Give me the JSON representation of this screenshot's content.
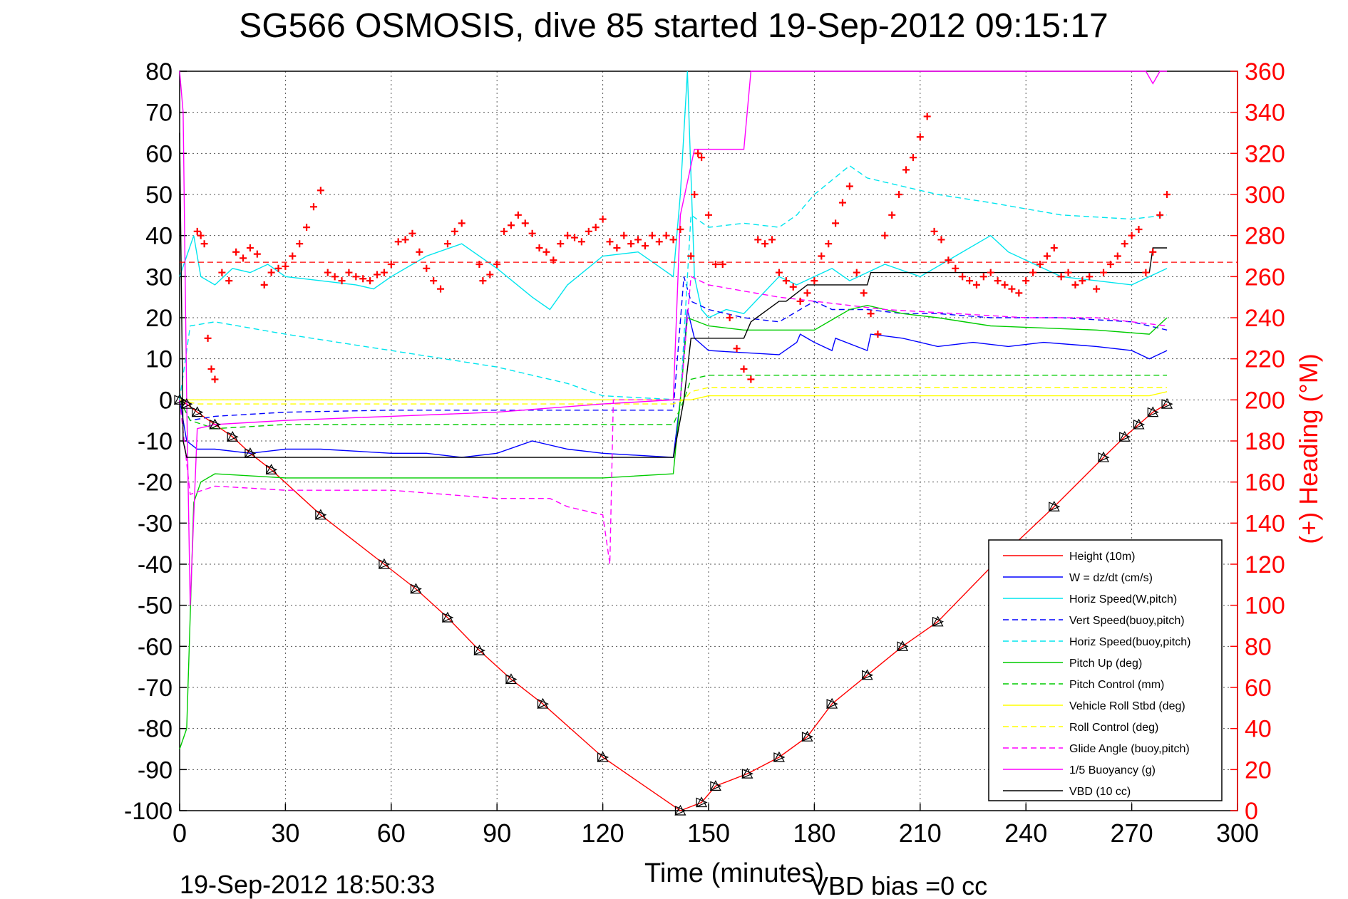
{
  "chart_data": {
    "type": "line",
    "title": "SG566 OSMOSIS, dive 85 started 19-Sep-2012 09:15:17",
    "xlabel": "Time (minutes)",
    "ylabel_right": "(+) Heading (°M)",
    "footer_left": "19-Sep-2012 18:50:33",
    "footer_right": "VBD bias =0 cc",
    "xlim": [
      0,
      300
    ],
    "ylim": [
      -100,
      80
    ],
    "ylim_right": [
      0,
      360
    ],
    "xticks": [
      "0",
      "30",
      "60",
      "90",
      "120",
      "150",
      "180",
      "210",
      "240",
      "270",
      "300"
    ],
    "yticks": [
      "80",
      "70",
      "60",
      "50",
      "40",
      "30",
      "20",
      "10",
      "0",
      "-10",
      "-20",
      "-30",
      "-40",
      "-50",
      "-60",
      "-70",
      "-80",
      "-90",
      "-100"
    ],
    "yticks_right": [
      "360",
      "340",
      "320",
      "300",
      "280",
      "260",
      "240",
      "220",
      "200",
      "180",
      "160",
      "140",
      "120",
      "100",
      "80",
      "60",
      "40",
      "20",
      "0"
    ],
    "grid": true,
    "legend_position": "bottom-right",
    "heading_mean": 267,
    "series": [
      {
        "name": "Height (10m)",
        "color": "#ff0000",
        "dash": "solid",
        "x": [
          0,
          2,
          5,
          10,
          15,
          20,
          26,
          40,
          58,
          67,
          76,
          85,
          94,
          103,
          120,
          142,
          148,
          152,
          161,
          170,
          178,
          185,
          195,
          205,
          215,
          232,
          248,
          262,
          268,
          272,
          276,
          280
        ],
        "y": [
          0,
          -1,
          -3,
          -6,
          -9,
          -13,
          -17,
          -28,
          -40,
          -46,
          -53,
          -61,
          -68,
          -74,
          -87,
          -100,
          -98,
          -94,
          -91,
          -87,
          -82,
          -74,
          -67,
          -60,
          -54,
          -39,
          -26,
          -14,
          -9,
          -6,
          -3,
          -1
        ]
      },
      {
        "name": "W = dz/dt (cm/s)",
        "color": "#0000ff",
        "dash": "solid",
        "x": [
          0,
          2,
          5,
          10,
          20,
          30,
          40,
          60,
          70,
          80,
          90,
          100,
          110,
          120,
          140,
          142,
          144,
          146,
          150,
          170,
          175,
          176,
          180,
          185,
          186,
          195,
          196,
          205,
          215,
          225,
          235,
          245,
          260,
          270,
          275,
          280
        ],
        "y": [
          0,
          -10,
          -12,
          -12,
          -13,
          -12,
          -12,
          -13,
          -13,
          -14,
          -13,
          -10,
          -12,
          -13,
          -14,
          0,
          22,
          15,
          12,
          11,
          14,
          16,
          14,
          12,
          15,
          12,
          16,
          15,
          13,
          14,
          13,
          14,
          13,
          12,
          10,
          12
        ]
      },
      {
        "name": "Horiz Speed(W,pitch)",
        "color": "#00e5ee",
        "dash": "solid",
        "x": [
          0,
          2,
          4,
          6,
          10,
          15,
          20,
          25,
          30,
          40,
          50,
          55,
          60,
          70,
          80,
          90,
          100,
          105,
          110,
          120,
          130,
          140,
          142,
          144,
          146,
          148,
          150,
          155,
          160,
          170,
          175,
          180,
          185,
          190,
          200,
          210,
          220,
          230,
          235,
          240,
          250,
          260,
          270,
          275,
          280
        ],
        "y": [
          30,
          35,
          40,
          30,
          28,
          32,
          31,
          33,
          30,
          29,
          28,
          27,
          30,
          35,
          38,
          32,
          25,
          22,
          28,
          35,
          36,
          30,
          50,
          80,
          30,
          22,
          20,
          22,
          21,
          30,
          28,
          30,
          32,
          29,
          33,
          30,
          35,
          40,
          36,
          34,
          30,
          29,
          28,
          30,
          32
        ]
      },
      {
        "name": "Vert Speed(buoy,pitch)",
        "color": "#0000ff",
        "dash": "dashed",
        "x": [
          0,
          3,
          10,
          30,
          60,
          90,
          120,
          140,
          143,
          145,
          150,
          160,
          170,
          180,
          185,
          195,
          205,
          215,
          230,
          250,
          270,
          280
        ],
        "y": [
          0,
          -5,
          -4,
          -3,
          -2.5,
          -2.5,
          -2.5,
          -2.5,
          30,
          24,
          22,
          20,
          19,
          24,
          22,
          22,
          21,
          21,
          20,
          20,
          19,
          17
        ]
      },
      {
        "name": "Horiz Speed(buoy,pitch)",
        "color": "#00e5ee",
        "dash": "dashed",
        "x": [
          0,
          3,
          10,
          30,
          60,
          90,
          110,
          120,
          142,
          145,
          150,
          160,
          170,
          175,
          180,
          190,
          195,
          205,
          215,
          230,
          250,
          270,
          280
        ],
        "y": [
          0,
          18,
          19,
          16,
          12,
          8,
          4,
          1,
          0,
          45,
          42,
          43,
          42,
          45,
          50,
          57,
          54,
          52,
          50,
          48,
          45,
          44,
          45
        ]
      },
      {
        "name": "Pitch Up (deg)",
        "color": "#00cc00",
        "dash": "solid",
        "x": [
          0,
          2,
          4,
          6,
          10,
          30,
          60,
          90,
          120,
          140,
          142,
          144,
          150,
          160,
          170,
          180,
          190,
          195,
          205,
          215,
          230,
          260,
          275,
          280
        ],
        "y": [
          -85,
          -80,
          -25,
          -20,
          -18,
          -19,
          -19,
          -19,
          -19,
          -18,
          0,
          20,
          18,
          17,
          17,
          17,
          22,
          23,
          21,
          20,
          18,
          17,
          16,
          20
        ]
      },
      {
        "name": "Pitch Control (mm)",
        "color": "#00cc00",
        "dash": "dashed",
        "x": [
          0,
          3,
          10,
          30,
          60,
          90,
          120,
          140,
          143,
          145,
          150,
          170,
          180,
          200,
          230,
          260,
          280
        ],
        "y": [
          0,
          -5,
          -7,
          -6,
          -6,
          -6,
          -6,
          -6,
          0,
          5,
          6,
          6,
          6,
          6,
          6,
          6,
          6
        ]
      },
      {
        "name": "Vehicle Roll Stbd (deg)",
        "color": "#ffff00",
        "dash": "solid",
        "x": [
          0,
          5,
          10,
          20,
          40,
          60,
          80,
          100,
          120,
          140,
          142,
          145,
          150,
          170,
          180,
          200,
          220,
          240,
          260,
          275,
          280
        ],
        "y": [
          0,
          0,
          0,
          0,
          0,
          0,
          0,
          0,
          0,
          0,
          0,
          0,
          1,
          1,
          1,
          1,
          1,
          1,
          1,
          1,
          2
        ]
      },
      {
        "name": "Roll Control (deg)",
        "color": "#ffff00",
        "dash": "dashed",
        "x": [
          0,
          5,
          10,
          30,
          60,
          90,
          120,
          140,
          143,
          145,
          150,
          170,
          200,
          230,
          260,
          280
        ],
        "y": [
          0,
          -1,
          -1,
          -1,
          -1,
          -1,
          -1,
          -1,
          0,
          2,
          3,
          3,
          3,
          3,
          3,
          3
        ]
      },
      {
        "name": "Glide Angle (buoy,pitch)",
        "color": "#ff00ff",
        "dash": "dashed",
        "x": [
          0,
          3,
          10,
          30,
          60,
          90,
          105,
          110,
          120,
          122,
          123,
          142,
          145,
          150,
          170,
          180,
          200,
          220,
          240,
          260,
          280
        ],
        "y": [
          0,
          -23,
          -21,
          -22,
          -22,
          -24,
          -24,
          -26,
          -28,
          -40,
          0,
          0,
          30,
          28,
          25,
          24,
          22,
          21,
          20,
          20,
          18
        ]
      },
      {
        "name": "1/5 Buoyancy (g)",
        "color": "#ff00ff",
        "dash": "solid",
        "x": [
          0,
          1,
          2,
          3,
          5,
          10,
          30,
          60,
          90,
          120,
          140,
          142,
          146,
          150,
          160,
          162,
          164,
          170,
          174,
          176,
          178,
          180,
          270,
          271,
          272,
          274,
          276,
          278,
          280
        ],
        "y": [
          80,
          70,
          0,
          -50,
          -7,
          -6,
          -5,
          -4,
          -3,
          -1,
          0,
          45,
          61,
          61,
          61,
          80,
          80,
          80,
          80,
          80,
          80,
          80,
          80,
          80,
          80,
          80,
          77,
          80,
          80
        ]
      },
      {
        "name": "VBD (10 cc)",
        "color": "#000000",
        "dash": "solid",
        "x": [
          0,
          1,
          2,
          3,
          15,
          60,
          100,
          140,
          143,
          145,
          150,
          160,
          162,
          170,
          172,
          178,
          180,
          195,
          196,
          265,
          275,
          276,
          280
        ],
        "y": [
          65,
          -10,
          -14,
          -14,
          -14,
          -14,
          -14,
          -14,
          0,
          15,
          15,
          15,
          19,
          24,
          24,
          28,
          28,
          28,
          31,
          31,
          31,
          37,
          37
        ]
      }
    ],
    "heading_points": {
      "name": "(+) Heading",
      "color": "#ff0000",
      "x": [
        5,
        6,
        7,
        8,
        9,
        10,
        12,
        14,
        16,
        18,
        20,
        22,
        24,
        26,
        28,
        30,
        32,
        34,
        36,
        38,
        40,
        42,
        44,
        46,
        48,
        50,
        52,
        54,
        56,
        58,
        60,
        62,
        64,
        66,
        68,
        70,
        72,
        74,
        76,
        78,
        80,
        85,
        86,
        88,
        90,
        92,
        94,
        96,
        98,
        100,
        102,
        104,
        106,
        108,
        110,
        112,
        114,
        116,
        118,
        120,
        122,
        124,
        126,
        128,
        130,
        132,
        134,
        136,
        138,
        140,
        142,
        145,
        146,
        147,
        148,
        150,
        152,
        154,
        156,
        158,
        160,
        162,
        164,
        166,
        168,
        170,
        172,
        174,
        176,
        178,
        180,
        182,
        184,
        186,
        188,
        190,
        192,
        194,
        196,
        198,
        200,
        202,
        204,
        206,
        208,
        210,
        212,
        214,
        216,
        218,
        220,
        222,
        224,
        226,
        228,
        230,
        232,
        234,
        236,
        238,
        240,
        242,
        244,
        246,
        248,
        250,
        252,
        254,
        256,
        258,
        260,
        262,
        264,
        266,
        268,
        270,
        272,
        274,
        276,
        278,
        280
      ],
      "y": [
        282,
        280,
        276,
        230,
        215,
        210,
        262,
        258,
        272,
        269,
        274,
        271,
        256,
        262,
        264,
        265,
        270,
        276,
        284,
        294,
        302,
        262,
        260,
        258,
        262,
        260,
        259,
        258,
        261,
        262,
        266,
        277,
        278,
        281,
        272,
        264,
        258,
        254,
        276,
        282,
        286,
        266,
        258,
        261,
        266,
        282,
        285,
        290,
        286,
        281,
        274,
        272,
        268,
        276,
        280,
        279,
        277,
        282,
        284,
        288,
        277,
        274,
        280,
        276,
        278,
        275,
        280,
        277,
        280,
        278,
        283,
        270,
        300,
        320,
        318,
        290,
        266,
        266,
        240,
        225,
        215,
        210,
        278,
        276,
        278,
        262,
        258,
        255,
        248,
        252,
        258,
        270,
        276,
        286,
        296,
        304,
        262,
        252,
        242,
        232,
        280,
        290,
        300,
        312,
        318,
        328,
        338,
        282,
        278,
        268,
        264,
        260,
        258,
        256,
        260,
        262,
        258,
        256,
        254,
        252,
        258,
        262,
        266,
        270,
        274,
        260,
        262,
        256,
        258,
        260,
        254,
        262,
        266,
        270,
        276,
        280,
        283,
        262,
        272,
        290,
        300
      ]
    }
  }
}
